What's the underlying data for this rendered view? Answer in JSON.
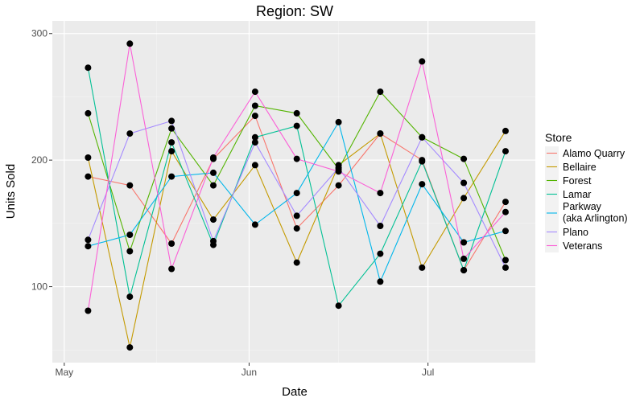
{
  "chart_data": {
    "type": "line",
    "title": "Region: SW",
    "xlabel": "Date",
    "ylabel": "Units Sold",
    "x_ticks": [
      "May",
      "Jun",
      "Jul"
    ],
    "y_ticks": [
      100,
      200,
      300
    ],
    "xlim": [
      "2019-04-29",
      "2019-07-19"
    ],
    "ylim": [
      40,
      310
    ],
    "grid": true,
    "legend": {
      "title": "Store",
      "position": "right"
    },
    "x": [
      "2019-05-05",
      "2019-05-12",
      "2019-05-19",
      "2019-05-26",
      "2019-06-02",
      "2019-06-09",
      "2019-06-16",
      "2019-06-23",
      "2019-06-30",
      "2019-07-07",
      "2019-07-14"
    ],
    "series": [
      {
        "name": "Alamo Quarry",
        "color": "#F8766D",
        "values": [
          187,
          180,
          134,
          201,
          235,
          146,
          180,
          221,
          200,
          113,
          167
        ]
      },
      {
        "name": "Bellaire",
        "color": "#C49A00",
        "values": [
          202,
          52,
          207,
          153,
          196,
          119,
          196,
          221,
          115,
          170,
          223
        ]
      },
      {
        "name": "Forest",
        "color": "#53B400",
        "values": [
          237,
          128,
          225,
          180,
          243,
          237,
          193,
          254,
          218,
          201,
          121
        ]
      },
      {
        "name": "Lamar",
        "color": "#00C094",
        "values": [
          273,
          92,
          214,
          133,
          218,
          227,
          85,
          126,
          199,
          113,
          207
        ]
      },
      {
        "name": "Parkway\n(aka Arlington)",
        "color": "#00B6EB",
        "values": [
          132,
          141,
          187,
          190,
          149,
          174,
          230,
          104,
          181,
          135,
          144
        ]
      },
      {
        "name": "Plano",
        "color": "#A58AFF",
        "values": [
          137,
          221,
          231,
          136,
          214,
          156,
          194,
          148,
          218,
          182,
          115
        ]
      },
      {
        "name": "Veterans",
        "color": "#FB61D7",
        "values": [
          81,
          292,
          114,
          202,
          254,
          201,
          191,
          174,
          278,
          122,
          159
        ]
      }
    ]
  }
}
